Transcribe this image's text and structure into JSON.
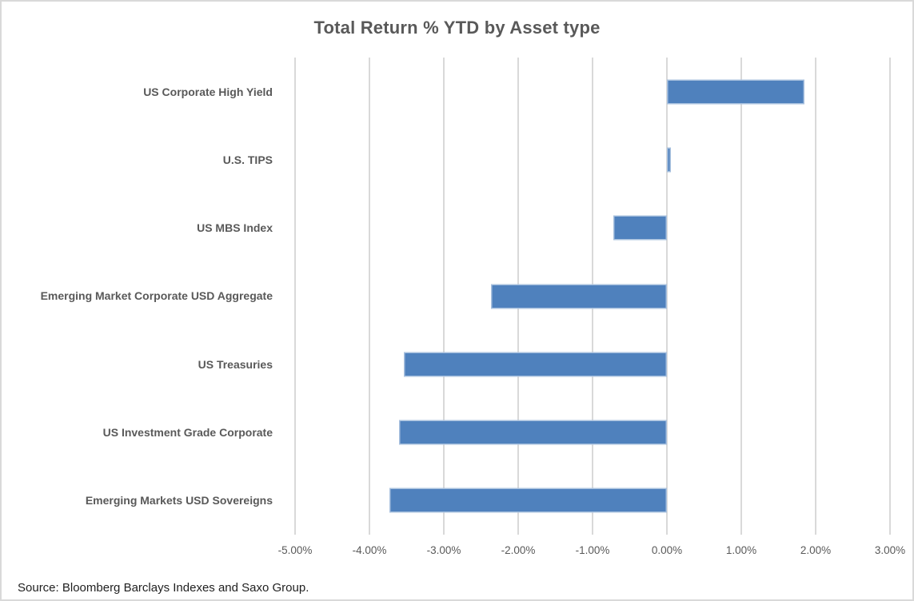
{
  "chart": {
    "title": "Total Return % YTD by Asset type",
    "source": "Source: Bloomberg Barclays Indexes and Saxo Group."
  },
  "chart_data": {
    "type": "bar",
    "orientation": "horizontal",
    "title": "Total Return % YTD by Asset type",
    "categories": [
      "US Corporate High Yield",
      "U.S. TIPS",
      "US MBS Index",
      "Emerging Market Corporate USD Aggregate",
      "US Treasuries",
      "US Investment Grade Corporate",
      "Emerging Markets USD Sovereigns"
    ],
    "values": [
      1.85,
      0.05,
      -0.72,
      -2.37,
      -3.54,
      -3.6,
      -3.73
    ],
    "value_unit": "%",
    "xlabel": "",
    "ylabel": "",
    "xlim": [
      -5,
      3
    ],
    "xtick_step": 1,
    "xtick_labels": [
      "-5.00%",
      "-4.00%",
      "-3.00%",
      "-2.00%",
      "-1.00%",
      "0.00%",
      "1.00%",
      "2.00%",
      "3.00%"
    ],
    "grid": true,
    "legend": false,
    "annotation": "Source: Bloomberg Barclays Indexes and Saxo Group."
  },
  "colors": {
    "bar_fill": "#4f81bd",
    "bar_edge": "#a7c0de",
    "gridline": "#d9d9d9",
    "title_text": "#595959",
    "label_text": "#595959",
    "tick_text": "#595959",
    "source_text": "#1f1f1f",
    "frame_border": "#d9d9d9",
    "background": "#ffffff"
  }
}
